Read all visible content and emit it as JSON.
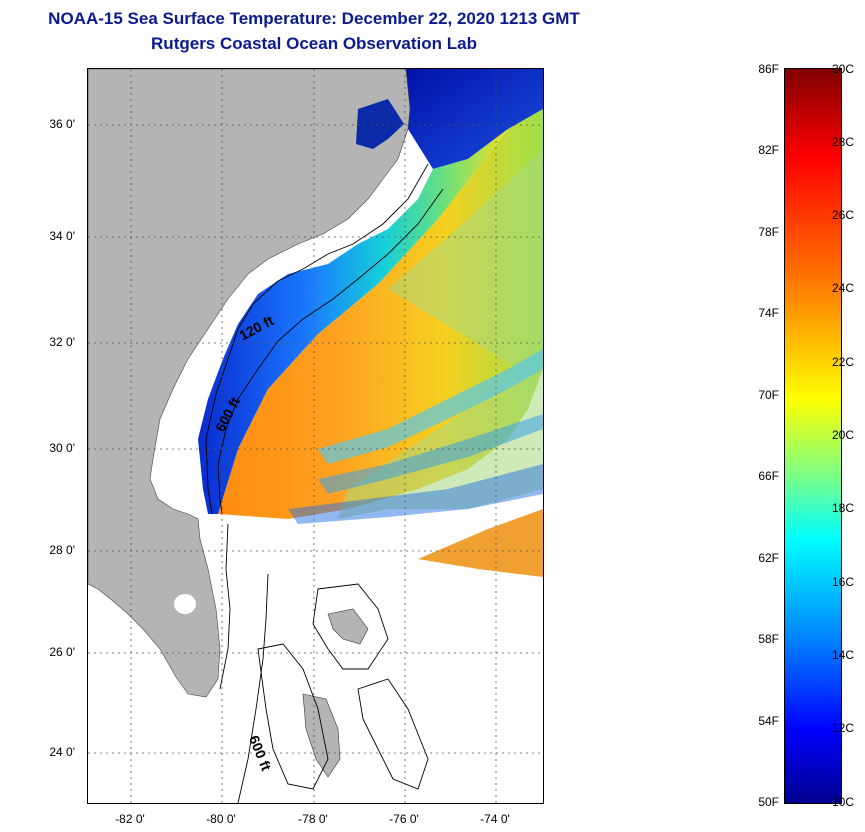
{
  "header": {
    "title": "NOAA-15 Sea Surface Temperature:  December 22, 2020 1213 GMT",
    "subtitle": "Rutgers Coastal Ocean Observation Lab"
  },
  "map": {
    "lat_range": [
      23,
      37.1
    ],
    "lon_range": [
      -83,
      -73
    ],
    "y_ticks": [
      "36 0'",
      "34 0'",
      "32 0'",
      "30 0'",
      "28 0'",
      "26 0'",
      "24 0'"
    ],
    "x_ticks": [
      "-82 0'",
      "-80 0'",
      "-78 0'",
      "-76 0'",
      "-74 0'"
    ],
    "contour_labels": [
      "120 ft",
      "600 ft",
      "600 ft"
    ],
    "colors": {
      "land": "#b4b4b4",
      "water_nodata": "#ffffff",
      "grid": "#555555"
    }
  },
  "colorbar": {
    "fahrenheit_labels": [
      "86F",
      "82F",
      "78F",
      "74F",
      "70F",
      "66F",
      "62F",
      "58F",
      "54F",
      "50F"
    ],
    "celsius_labels": [
      "30C",
      "28C",
      "26C",
      "24C",
      "22C",
      "20C",
      "18C",
      "16C",
      "14C",
      "12C",
      "10C"
    ],
    "range_c": [
      10,
      30
    ]
  }
}
